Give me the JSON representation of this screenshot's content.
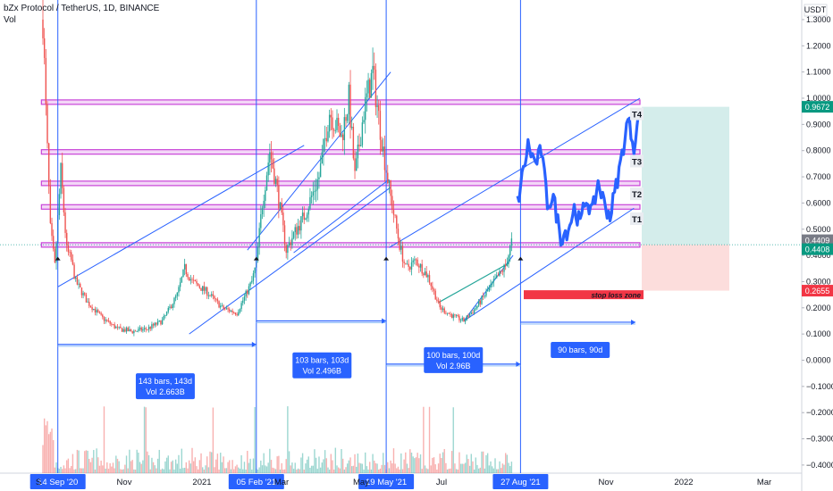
{
  "header": {
    "symbol_line": "bZx Protocol / TetherUS, 1D, BINANCE",
    "indicator": "Vol"
  },
  "colors": {
    "up": "#26a69a",
    "down": "#ef5350",
    "projection": "#2962ff",
    "zone_border": "#c844d8",
    "zone_fill": "#f3d6f7",
    "target_zone": "#26a69a",
    "stop_zone": "#ef5350",
    "channel": "#2962ff"
  },
  "chart_data": {
    "type": "candlestick",
    "y_axis": {
      "currency": "USDT",
      "range": [
        -0.41,
        1.34
      ],
      "ticks": [
        "1.3000",
        "1.2000",
        "1.1000",
        "1.0000",
        "0.9000",
        "0.8000",
        "0.7000",
        "0.6000",
        "0.5000",
        "0.4000",
        "0.3000",
        "0.2000",
        "0.1000",
        "0.0000",
        "−0.1000",
        "−0.2000",
        "−0.3000",
        "−0.4000"
      ]
    },
    "x_axis": {
      "labels": [
        "S",
        "Nov",
        "2021",
        "Mar",
        "May",
        "Jul",
        "Nov",
        "2022",
        "Mar"
      ]
    },
    "price_tags": [
      {
        "text": "0.9672",
        "value": 0.9672,
        "type": "target"
      },
      {
        "text": "0.4409",
        "value": 0.4409,
        "type": "entry"
      },
      {
        "text": "0.4408",
        "value": 0.4408,
        "type": "last"
      },
      {
        "text": "0.2655",
        "value": 0.2655,
        "type": "stop"
      }
    ],
    "horizontal_zones": [
      0.985,
      0.795,
      0.675,
      0.585,
      0.44
    ],
    "targets": [
      {
        "label": "T4",
        "value": 0.94
      },
      {
        "label": "T3",
        "value": 0.76
      },
      {
        "label": "T2",
        "value": 0.635
      },
      {
        "label": "T1",
        "value": 0.54
      }
    ],
    "stop_loss": {
      "label": "stop loss zone",
      "value": 0.25
    },
    "position": {
      "entry": 0.4409,
      "target": 0.9672,
      "stop": 0.2655
    },
    "cycle_dates": [
      "14 Sep '20",
      "05 Feb '21",
      "19 May '21",
      "27 Aug '21"
    ],
    "measurements": [
      {
        "line1": "143 bars, 143d",
        "line2": "Vol 2.663B"
      },
      {
        "line1": "103 bars, 103d",
        "line2": "Vol 2.496B"
      },
      {
        "line1": "100 bars, 100d",
        "line2": "Vol 2.96B"
      },
      {
        "line1": "90 bars, 90d",
        "line2": ""
      }
    ],
    "price_path": [
      [
        0,
        1.3
      ],
      [
        2,
        0.95
      ],
      [
        5,
        0.5
      ],
      [
        8,
        0.36
      ],
      [
        12,
        0.72
      ],
      [
        16,
        0.42
      ],
      [
        19,
        0.38
      ],
      [
        22,
        0.3
      ],
      [
        30,
        0.22
      ],
      [
        40,
        0.16
      ],
      [
        50,
        0.12
      ],
      [
        60,
        0.11
      ],
      [
        70,
        0.12
      ],
      [
        80,
        0.15
      ],
      [
        90,
        0.25
      ],
      [
        95,
        0.35
      ],
      [
        100,
        0.3
      ],
      [
        110,
        0.26
      ],
      [
        120,
        0.2
      ],
      [
        130,
        0.18
      ],
      [
        140,
        0.3
      ],
      [
        143,
        0.37
      ],
      [
        147,
        0.6
      ],
      [
        152,
        0.8
      ],
      [
        157,
        0.65
      ],
      [
        163,
        0.42
      ],
      [
        168,
        0.48
      ],
      [
        175,
        0.55
      ],
      [
        185,
        0.7
      ],
      [
        192,
        0.95
      ],
      [
        200,
        0.85
      ],
      [
        205,
        1.0
      ],
      [
        209,
        0.7
      ],
      [
        215,
        0.95
      ],
      [
        221,
        1.1
      ],
      [
        228,
        0.8
      ],
      [
        233,
        0.62
      ],
      [
        239,
        0.44
      ],
      [
        243,
        0.35
      ],
      [
        250,
        0.38
      ],
      [
        258,
        0.32
      ],
      [
        266,
        0.2
      ],
      [
        274,
        0.17
      ],
      [
        282,
        0.15
      ],
      [
        290,
        0.2
      ],
      [
        300,
        0.28
      ],
      [
        310,
        0.36
      ],
      [
        314,
        0.45
      ]
    ],
    "projection_path": [
      [
        318,
        0.6
      ],
      [
        325,
        0.82
      ],
      [
        330,
        0.75
      ],
      [
        334,
        0.8
      ],
      [
        338,
        0.6
      ],
      [
        342,
        0.62
      ],
      [
        347,
        0.47
      ],
      [
        352,
        0.5
      ],
      [
        356,
        0.58
      ],
      [
        360,
        0.52
      ],
      [
        364,
        0.62
      ],
      [
        368,
        0.56
      ],
      [
        372,
        0.68
      ],
      [
        376,
        0.6
      ],
      [
        380,
        0.55
      ],
      [
        386,
        0.72
      ],
      [
        392,
        0.92
      ],
      [
        396,
        0.82
      ],
      [
        400,
        0.95
      ]
    ]
  }
}
